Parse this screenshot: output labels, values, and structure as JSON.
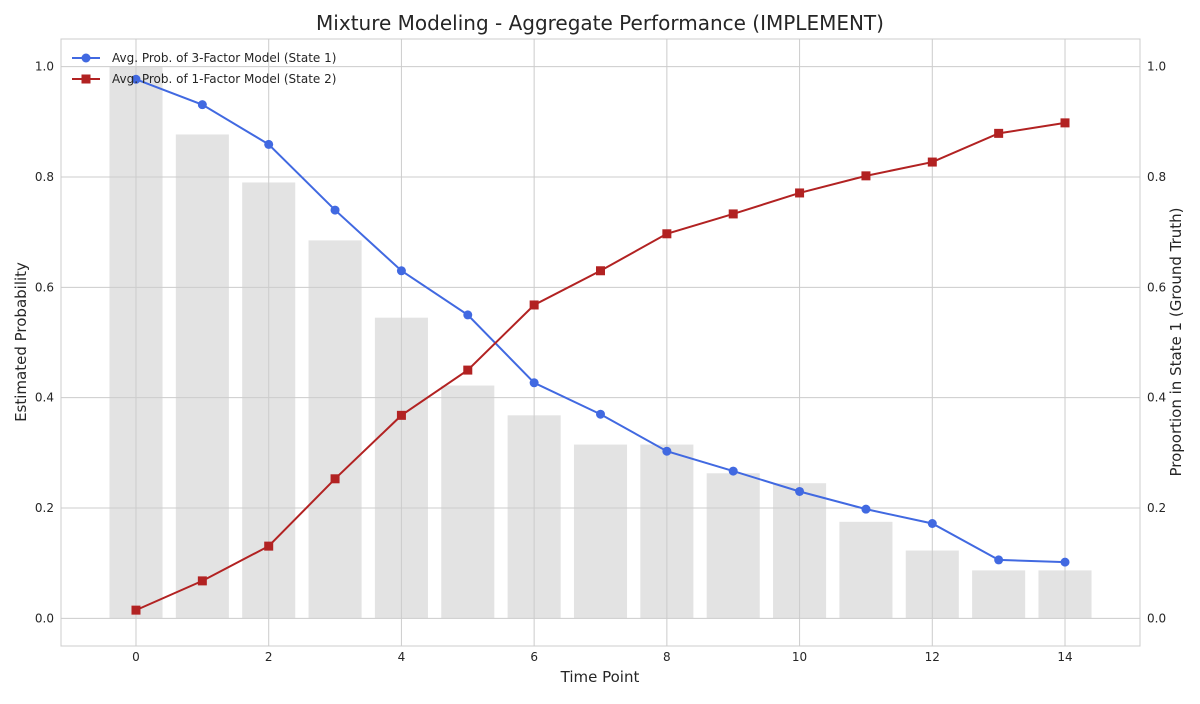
{
  "chart_data": {
    "type": "line",
    "title": "Mixture Modeling - Aggregate Performance (IMPLEMENT)",
    "xlabel": "Time Point",
    "ylabel": "Estimated Probability",
    "y2label": "Proportion in State 1 (Ground Truth)",
    "xlim": [
      -1.13,
      15.13
    ],
    "ylim": [
      -0.05,
      1.05
    ],
    "y2lim": [
      -0.05,
      1.05
    ],
    "x_ticks": [
      0,
      2,
      4,
      6,
      8,
      10,
      12,
      14
    ],
    "y_ticks": [
      0.0,
      0.2,
      0.4,
      0.6,
      0.8,
      1.0
    ],
    "y2_ticks": [
      0.0,
      0.2,
      0.4,
      0.6,
      0.8,
      1.0
    ],
    "grid": true,
    "legend_position": "top-left",
    "x": [
      0,
      1,
      2,
      3,
      4,
      5,
      6,
      7,
      8,
      9,
      10,
      11,
      12,
      13,
      14
    ],
    "series": [
      {
        "name": "Avg. Prob. of 3-Factor Model (State 1)",
        "axis": "left",
        "color": "#4169e1",
        "marker": "circle",
        "values": [
          0.977,
          0.931,
          0.859,
          0.74,
          0.63,
          0.55,
          0.427,
          0.37,
          0.303,
          0.267,
          0.23,
          0.198,
          0.172,
          0.106,
          0.102
        ]
      },
      {
        "name": "Avg. Prob. of 1-Factor Model (State 2)",
        "axis": "left",
        "color": "#b22222",
        "marker": "square",
        "values": [
          0.015,
          0.068,
          0.131,
          0.253,
          0.368,
          0.45,
          0.568,
          0.63,
          0.697,
          0.733,
          0.771,
          0.802,
          0.827,
          0.879,
          0.898
        ]
      }
    ],
    "bars": {
      "axis": "right",
      "color": "#e3e3e3",
      "values": [
        1.0,
        0.877,
        0.79,
        0.685,
        0.545,
        0.422,
        0.368,
        0.315,
        0.315,
        0.263,
        0.245,
        0.175,
        0.123,
        0.087,
        0.087
      ]
    }
  }
}
